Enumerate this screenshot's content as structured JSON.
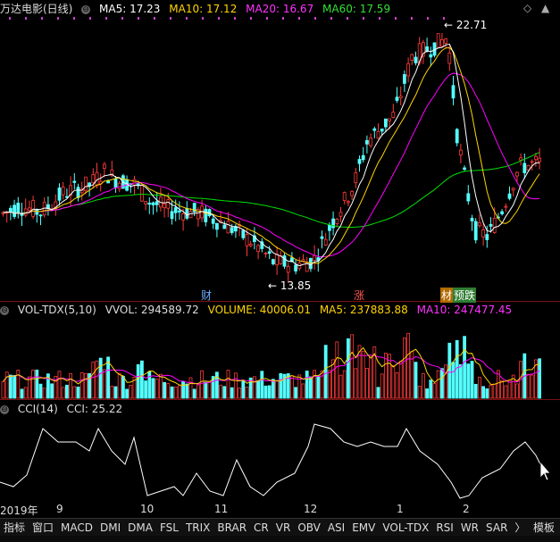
{
  "price": {
    "title": "万达电影(日线)",
    "ma5": "MA5: 17.23",
    "ma10": "MA10: 17.12",
    "ma20": "MA20: 16.67",
    "ma60": "MA60: 17.59",
    "high_label": "22.71",
    "low_label": "13.85",
    "marker_cai": "财",
    "marker_zhang": "涨",
    "marker_ying": "材",
    "marker_die": "预跌"
  },
  "volume": {
    "title": "VOL-TDX(5,10)",
    "vvol": "VVOL: 294589.72",
    "volume": "VOLUME: 40006.01",
    "ma5": "MA5: 237883.88",
    "ma10": "MA10: 247477.45"
  },
  "cci": {
    "title": "CCI(14)",
    "value": "CCI: 25.22"
  },
  "xaxis": {
    "labels": [
      "2019年",
      "9",
      "10",
      "11",
      "12",
      "1",
      "2"
    ]
  },
  "tabs": {
    "items": [
      "指标",
      "窗口",
      "MACD",
      "DMI",
      "DMA",
      "FSL",
      "TRIX",
      "BRAR",
      "CR",
      "VR",
      "OBV",
      "ASI",
      "EMV",
      "VOL-TDX",
      "RSI",
      "WR",
      "SAR",
      "〉"
    ],
    "right": "模板"
  },
  "colors": {
    "up": "#ff3a3a",
    "down": "#54ffff",
    "ma5": "#ffffff",
    "ma10": "#ffd400",
    "ma20": "#ff00ff",
    "ma60": "#00e000"
  }
}
